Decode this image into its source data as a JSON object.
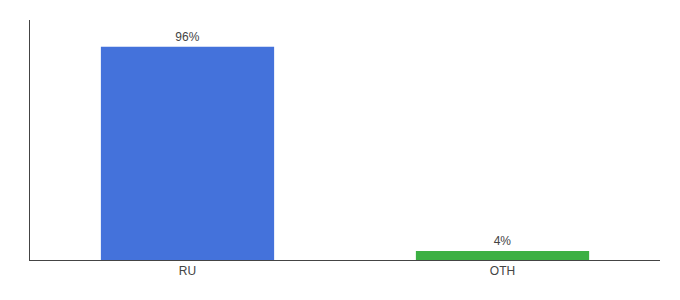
{
  "chart_data": {
    "type": "bar",
    "categories": [
      "RU",
      "OTH"
    ],
    "values": [
      96,
      4
    ],
    "value_labels": [
      "96%",
      "4%"
    ],
    "data_labels": true,
    "colors": [
      "#4472db",
      "#3cb043"
    ],
    "ylim": [
      0,
      108
    ],
    "grid": false,
    "tick_labels": "x"
  }
}
